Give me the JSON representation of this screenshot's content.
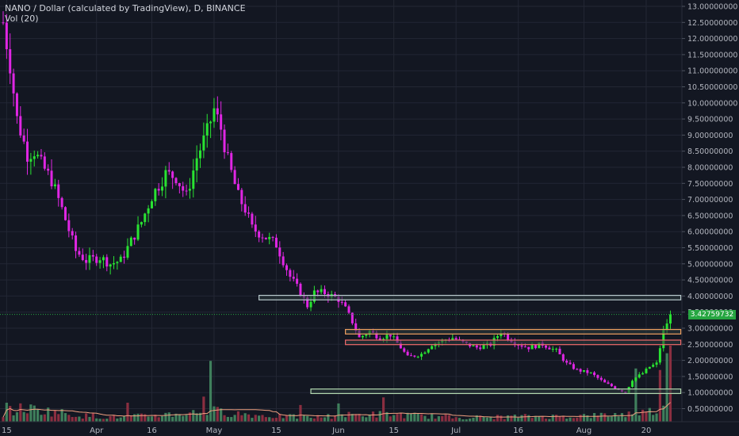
{
  "legend": {
    "symbol_line": "NANO / Dollar (calculated by TradingView), D, BINANCE",
    "volume_line": "Vol (20)"
  },
  "colors": {
    "background": "#131722",
    "grid": "#232734",
    "up": "#29e332",
    "down": "#e026e4",
    "vol_up": "#3f7f5c",
    "vol_down": "#8a2e40",
    "vol_ma": "#f0a080",
    "price_line": "#26a641",
    "zone_fill": "#2b3a3c",
    "zone_light": "#b8c9cc",
    "zone_orange": "#f0a060",
    "zone_red": "#f06a6a",
    "zone_green": "#b2d8b0"
  },
  "chart_data": {
    "type": "candlestick",
    "title": "NANO / Dollar (calculated by TradingView), D, BINANCE",
    "y_axis": {
      "position": "right",
      "min": 0.3,
      "max": 13.0,
      "tick_labels": [
        "13.00000000",
        "12.50000000",
        "12.00000000",
        "11.50000000",
        "11.00000000",
        "10.50000000",
        "10.00000000",
        "9.50000000",
        "9.00000000",
        "8.50000000",
        "8.00000000",
        "7.50000000",
        "7.00000000",
        "6.50000000",
        "6.00000000",
        "5.50000000",
        "5.00000000",
        "4.50000000",
        "4.00000000",
        "3.50000000",
        "3.00000000",
        "2.50000000",
        "2.00000000",
        "1.50000000",
        "1.00000000",
        "0.50000000"
      ],
      "tick_values": [
        13,
        12.5,
        12,
        11.5,
        11,
        10.5,
        10,
        9.5,
        9,
        8.5,
        8,
        7.5,
        7,
        6.5,
        6,
        5.5,
        5,
        4.5,
        4,
        3.5,
        3,
        2.5,
        2,
        1.5,
        1,
        0.5
      ]
    },
    "x_axis": {
      "tick_labels": [
        "15",
        "Apr",
        "16",
        "May",
        "15",
        "Jun",
        "15",
        "Jul",
        "16",
        "Aug",
        "20"
      ],
      "tick_index": [
        1,
        27,
        43,
        61,
        79,
        97,
        113,
        131,
        149,
        168,
        186
      ]
    },
    "last_price": 3.4275973,
    "last_price_label": "3.42759732",
    "zones": [
      {
        "low": 3.88,
        "high": 4.02,
        "from_index": 74,
        "to_index": 196,
        "color": "light"
      },
      {
        "low": 2.82,
        "high": 2.96,
        "from_index": 99,
        "to_index": 196,
        "color": "orange"
      },
      {
        "low": 2.49,
        "high": 2.63,
        "from_index": 99,
        "to_index": 196,
        "color": "red"
      },
      {
        "low": 0.97,
        "high": 1.11,
        "from_index": 89,
        "to_index": 196,
        "color": "green"
      }
    ],
    "anchors": [
      [
        0,
        12.5
      ],
      [
        2,
        11.2
      ],
      [
        4,
        9.5
      ],
      [
        7,
        8.4
      ],
      [
        9,
        8.5
      ],
      [
        11,
        8.1
      ],
      [
        14,
        7.6
      ],
      [
        17,
        6.7
      ],
      [
        21,
        5.4
      ],
      [
        24,
        5.1
      ],
      [
        28,
        5.2
      ],
      [
        31,
        5.0
      ],
      [
        34,
        5.1
      ],
      [
        37,
        5.7
      ],
      [
        40,
        6.3
      ],
      [
        43,
        7.1
      ],
      [
        47,
        7.8
      ],
      [
        50,
        7.7
      ],
      [
        53,
        7.1
      ],
      [
        56,
        8.3
      ],
      [
        59,
        9.1
      ],
      [
        61,
        9.8
      ],
      [
        63,
        9.2
      ],
      [
        65,
        8.2
      ],
      [
        68,
        7.1
      ],
      [
        70,
        6.7
      ],
      [
        72,
        6.1
      ],
      [
        75,
        5.9
      ],
      [
        79,
        5.6
      ],
      [
        83,
        4.6
      ],
      [
        86,
        4.1
      ],
      [
        88,
        3.7
      ],
      [
        90,
        4.1
      ],
      [
        93,
        4.1
      ],
      [
        97,
        3.9
      ],
      [
        99,
        3.6
      ],
      [
        101,
        3.2
      ],
      [
        103,
        2.7
      ],
      [
        106,
        2.9
      ],
      [
        109,
        2.7
      ],
      [
        112,
        2.8
      ],
      [
        115,
        2.4
      ],
      [
        117,
        2.1
      ],
      [
        121,
        2.2
      ],
      [
        124,
        2.5
      ],
      [
        127,
        2.6
      ],
      [
        130,
        2.7
      ],
      [
        134,
        2.5
      ],
      [
        137,
        2.4
      ],
      [
        141,
        2.5
      ],
      [
        144,
        2.9
      ],
      [
        146,
        2.7
      ],
      [
        149,
        2.5
      ],
      [
        152,
        2.4
      ],
      [
        156,
        2.5
      ],
      [
        160,
        2.3
      ],
      [
        163,
        1.9
      ],
      [
        166,
        1.7
      ],
      [
        170,
        1.6
      ],
      [
        174,
        1.3
      ],
      [
        178,
        1.1
      ],
      [
        180,
        1.0
      ],
      [
        182,
        1.4
      ],
      [
        185,
        1.6
      ],
      [
        187,
        1.8
      ],
      [
        189,
        1.9
      ],
      [
        191,
        2.9
      ],
      [
        193,
        3.43
      ]
    ],
    "volume": {
      "label": "Vol (20)",
      "anchors": [
        [
          0,
          0.12
        ],
        [
          6,
          0.18
        ],
        [
          15,
          0.13
        ],
        [
          25,
          0.07
        ],
        [
          35,
          0.06
        ],
        [
          45,
          0.09
        ],
        [
          55,
          0.12
        ],
        [
          61,
          0.14
        ],
        [
          70,
          0.1
        ],
        [
          80,
          0.07
        ],
        [
          90,
          0.06
        ],
        [
          100,
          0.09
        ],
        [
          110,
          0.1
        ],
        [
          120,
          0.08
        ],
        [
          130,
          0.06
        ],
        [
          140,
          0.06
        ],
        [
          150,
          0.07
        ],
        [
          160,
          0.07
        ],
        [
          170,
          0.08
        ],
        [
          180,
          0.1
        ],
        [
          186,
          0.13
        ],
        [
          193,
          0.17
        ]
      ],
      "spikes": [
        [
          1,
          0.25
        ],
        [
          26,
          0.11
        ],
        [
          36,
          0.25
        ],
        [
          58,
          0.33
        ],
        [
          60,
          0.8
        ],
        [
          74,
          0.08
        ],
        [
          86,
          0.22
        ],
        [
          97,
          0.24
        ],
        [
          110,
          0.32
        ],
        [
          183,
          0.7
        ],
        [
          190,
          0.68
        ],
        [
          192,
          0.9
        ],
        [
          193,
          1.0
        ]
      ]
    }
  }
}
